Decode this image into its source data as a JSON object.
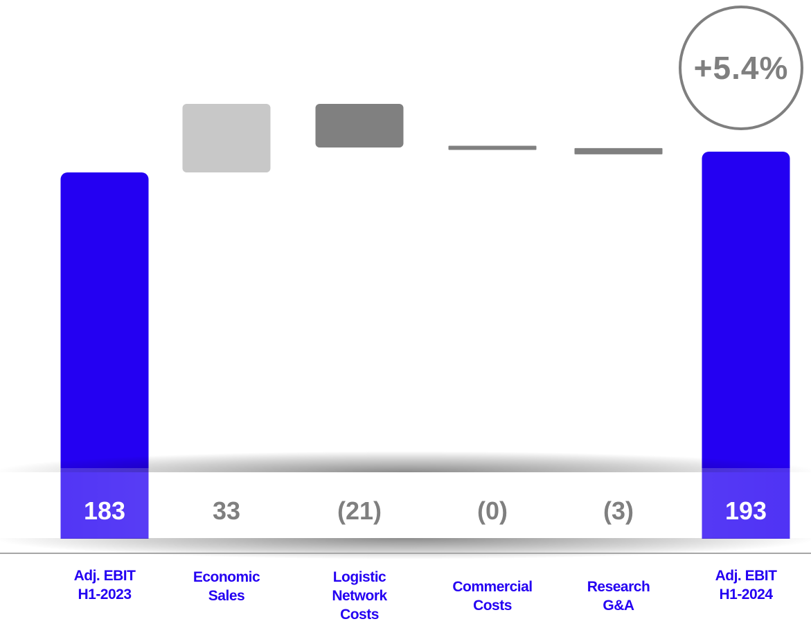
{
  "chart_data": {
    "type": "bar",
    "subtype": "waterfall",
    "categories": [
      "Adj. EBIT H1-2023",
      "Economic Sales",
      "Logistic Network Costs",
      "Commercial Costs",
      "Research G&A",
      "Adj. EBIT H1-2024"
    ],
    "category_lines": [
      [
        "Adj. EBIT",
        "H1-2023"
      ],
      [
        "Economic",
        "Sales"
      ],
      [
        "Logistic",
        "Network",
        "Costs"
      ],
      [
        "Commercial",
        "Costs"
      ],
      [
        "Research",
        "G&A"
      ],
      [
        "Adj. EBIT",
        "H1-2024"
      ]
    ],
    "values": [
      183,
      33,
      -21,
      -0.3,
      -3,
      193
    ],
    "value_labels": [
      "183",
      "33",
      "(21)",
      "(0)",
      "(3)",
      "193"
    ],
    "kinds": [
      "total",
      "delta",
      "delta",
      "delta",
      "delta",
      "total"
    ],
    "colors": [
      "#2400f2",
      "#c8c8c8",
      "#808080",
      "#808080",
      "#808080",
      "#2400f2"
    ],
    "label_colors": [
      "#ffffff",
      "#7f7f7f",
      "#7f7f7f",
      "#7f7f7f",
      "#7f7f7f",
      "#ffffff"
    ],
    "label_color": "#2400f2",
    "change_badge": "+5.4%",
    "grid": false,
    "legend": "none"
  }
}
